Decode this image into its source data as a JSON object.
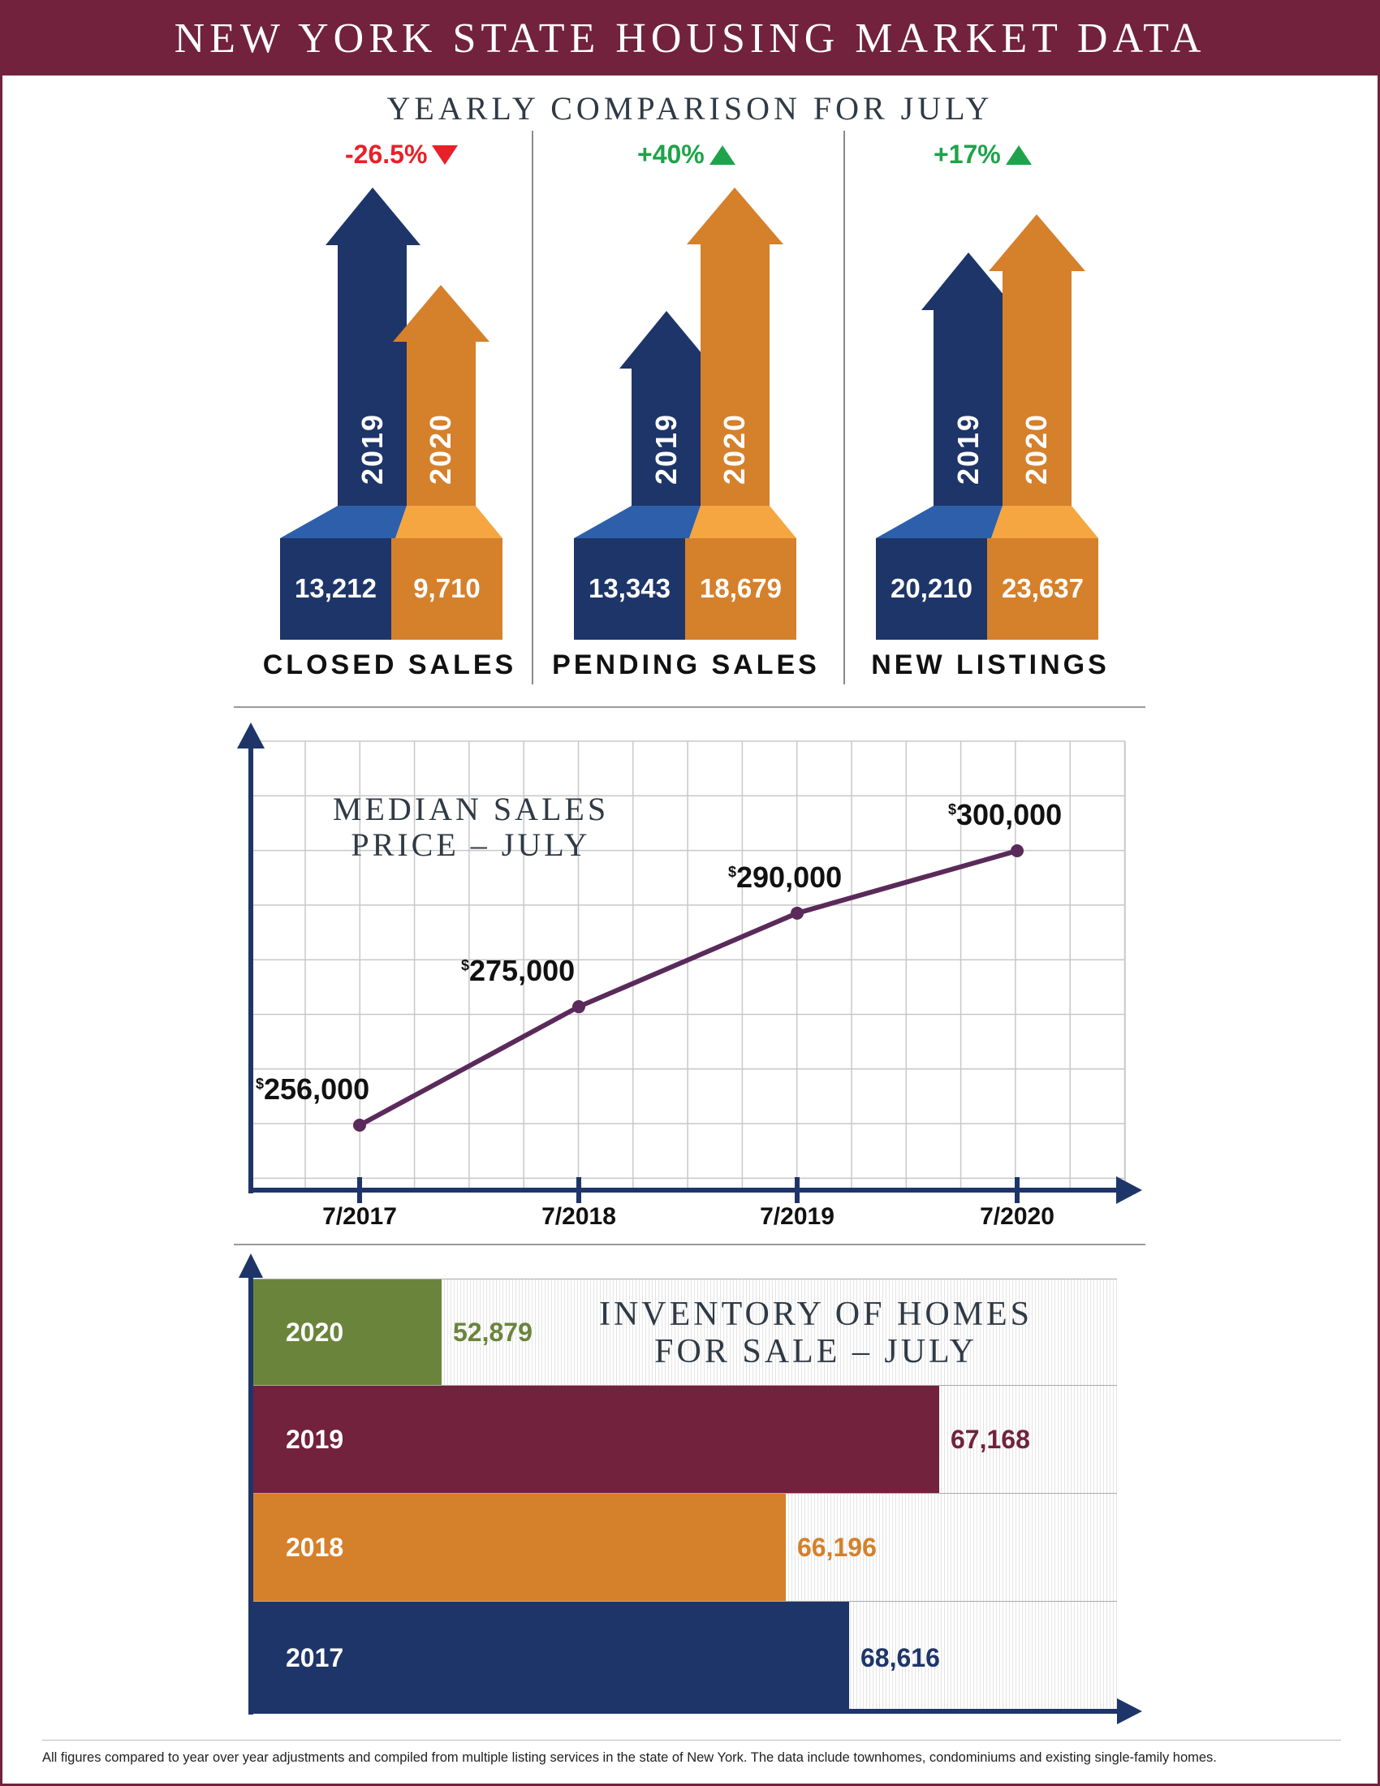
{
  "header": {
    "title": "NEW YORK STATE HOUSING MARKET DATA"
  },
  "comparison": {
    "title": "YEARLY COMPARISON FOR JULY",
    "groups": [
      {
        "label": "CLOSED SALES",
        "change": "-26.5%",
        "direction": "down",
        "change_color": "#e8202a",
        "years": [
          "2019",
          "2020"
        ],
        "values": [
          "13,212",
          "9,710"
        ]
      },
      {
        "label": "PENDING SALES",
        "change": "+40%",
        "direction": "up",
        "change_color": "#1fa34a",
        "years": [
          "2019",
          "2020"
        ],
        "values": [
          "13,343",
          "18,679"
        ]
      },
      {
        "label": "NEW LISTINGS",
        "change": "+17%",
        "direction": "up",
        "change_color": "#1fa34a",
        "years": [
          "2019",
          "2020"
        ],
        "values": [
          "20,210",
          "23,637"
        ]
      }
    ],
    "colors": {
      "2019": "#1e3569",
      "2020": "#d5802b",
      "2019_top": "#2d5fab",
      "2020_top": "#f5a640"
    }
  },
  "chart_data": [
    {
      "type": "line",
      "title_line1": "MEDIAN SALES",
      "title_line2": "PRICE – JULY",
      "categories": [
        "7/2017",
        "7/2018",
        "7/2019",
        "7/2020"
      ],
      "values": [
        256000,
        275000,
        290000,
        300000
      ],
      "value_labels": [
        "256,000",
        "275,000",
        "290,000",
        "300,000"
      ],
      "currency_symbol": "$",
      "line_color": "#5a2a5a",
      "grid": true
    },
    {
      "type": "bar",
      "orientation": "horizontal",
      "title_line1": "INVENTORY OF HOMES",
      "title_line2": "FOR SALE – JULY",
      "categories": [
        "2020",
        "2019",
        "2018",
        "2017"
      ],
      "values": [
        52879,
        67168,
        66196,
        68616
      ],
      "value_labels": [
        "52,879",
        "67,168",
        "66,196",
        "68,616"
      ],
      "colors": [
        "#6b843c",
        "#72223c",
        "#d5802b",
        "#1e3569"
      ]
    }
  ],
  "footer": {
    "note": "All figures compared to year over year adjustments and compiled from multiple listing services in the state of New York. The data include townhomes, condominiums and existing single-family homes."
  }
}
